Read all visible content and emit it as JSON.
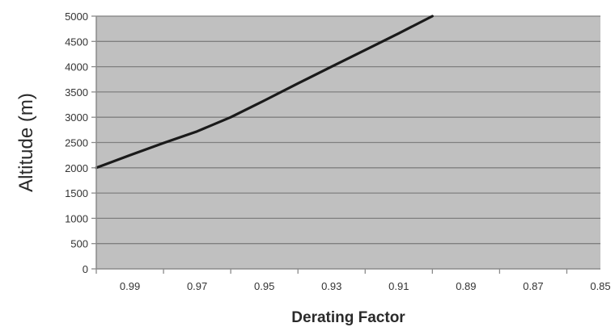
{
  "chart_data": {
    "type": "line",
    "title": "",
    "xlabel": "Derating Factor",
    "ylabel": "Altitude (m)",
    "x_reversed": true,
    "xlim": [
      1.0,
      0.85
    ],
    "ylim": [
      0,
      5000
    ],
    "x_ticks": [
      "0.99",
      "0.97",
      "0.95",
      "0.93",
      "0.91",
      "0.89",
      "0.87",
      "0.85"
    ],
    "x_tick_values": [
      0.99,
      0.97,
      0.95,
      0.93,
      0.91,
      0.89,
      0.87,
      0.85
    ],
    "y_ticks": [
      "0",
      "500",
      "1000",
      "1500",
      "2000",
      "2500",
      "3000",
      "3500",
      "4000",
      "4500",
      "5000"
    ],
    "y_tick_values": [
      0,
      500,
      1000,
      1500,
      2000,
      2500,
      3000,
      3500,
      4000,
      4500,
      5000
    ],
    "grid": "horizontal",
    "series": [
      {
        "x": [
          1.0,
          0.99,
          0.98,
          0.97,
          0.96,
          0.95,
          0.94,
          0.93,
          0.92,
          0.91,
          0.9
        ],
        "y": [
          2000,
          2250,
          2490,
          2720,
          3000,
          3330,
          3670,
          4000,
          4330,
          4660,
          5000
        ]
      }
    ],
    "colors": {
      "plot_background": "#c0c0c0",
      "gridline": "#7f7f7f",
      "line": "#1a1a1a",
      "axis": "#8a8a8a"
    }
  }
}
